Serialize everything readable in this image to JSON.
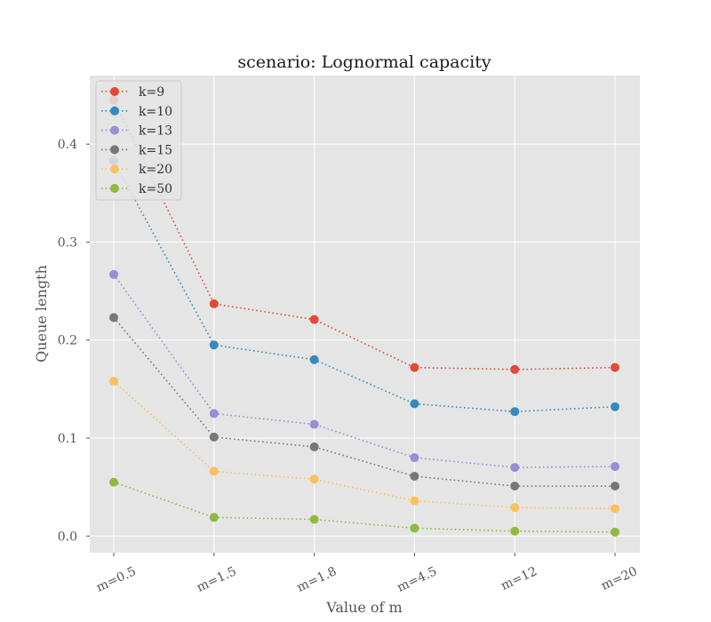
{
  "chart_data": {
    "type": "line",
    "title": "scenario: Lognormal capacity",
    "xlabel": "Value of m",
    "ylabel": "Queue length",
    "categories": [
      "m=0.5",
      "m=1.5",
      "m=1.8",
      "m=4.5",
      "m=12",
      "m=20"
    ],
    "ylim": [
      -0.017,
      0.47
    ],
    "yticks": [
      0.0,
      0.1,
      0.2,
      0.3,
      0.4
    ],
    "ytick_labels": [
      "0.0",
      "0.1",
      "0.2",
      "0.3",
      "0.4"
    ],
    "grid": true,
    "legend_position": "top-left",
    "line_style": "dotted",
    "series": [
      {
        "name": "k=9",
        "color": "#E24A33",
        "values": [
          0.445,
          0.237,
          0.221,
          0.172,
          0.17,
          0.172
        ]
      },
      {
        "name": "k=10",
        "color": "#348ABD",
        "values": [
          0.383,
          0.195,
          0.18,
          0.135,
          0.127,
          0.132
        ]
      },
      {
        "name": "k=13",
        "color": "#988ED5",
        "values": [
          0.267,
          0.125,
          0.114,
          0.08,
          0.07,
          0.071
        ]
      },
      {
        "name": "k=15",
        "color": "#777777",
        "values": [
          0.223,
          0.101,
          0.091,
          0.061,
          0.051,
          0.051
        ]
      },
      {
        "name": "k=20",
        "color": "#FBC15E",
        "values": [
          0.158,
          0.066,
          0.058,
          0.036,
          0.029,
          0.028
        ]
      },
      {
        "name": "k=50",
        "color": "#8EBA42",
        "values": [
          0.055,
          0.019,
          0.017,
          0.008,
          0.005,
          0.004
        ]
      }
    ]
  }
}
